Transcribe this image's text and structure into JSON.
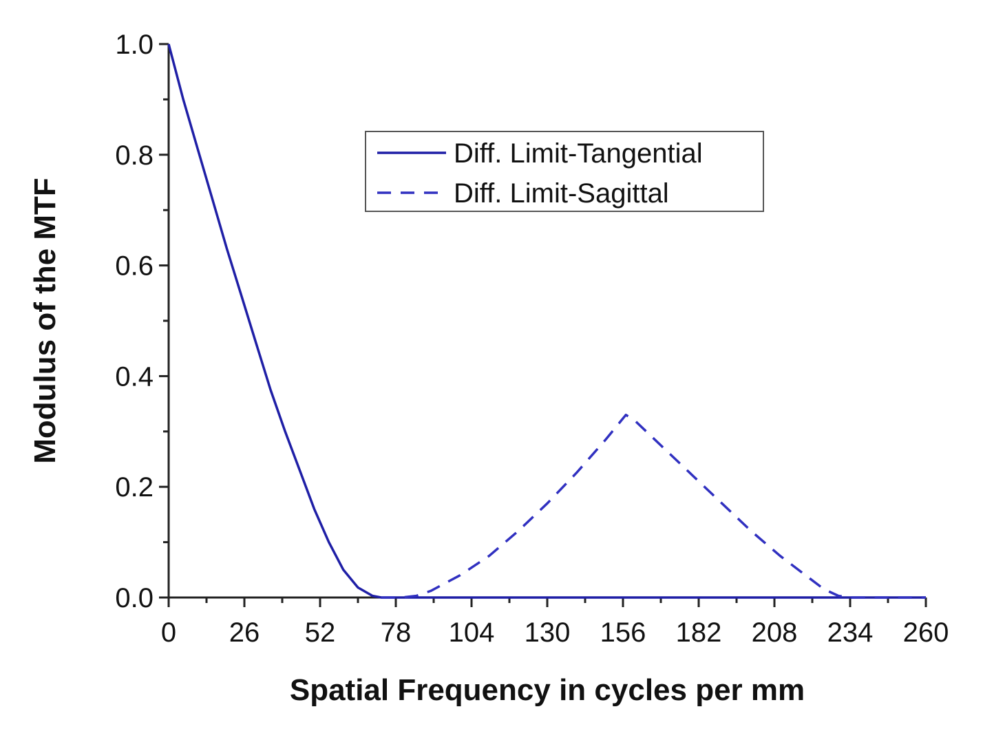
{
  "chart_data": {
    "type": "line",
    "title": "",
    "xlabel": "Spatial Frequency in cycles per mm",
    "ylabel": "Modulus of the MTF",
    "xlim": [
      0,
      260
    ],
    "ylim": [
      0,
      1.0
    ],
    "x_ticks": [
      0,
      26,
      52,
      78,
      104,
      130,
      156,
      182,
      208,
      234,
      260
    ],
    "x_tick_labels": [
      "0",
      "26",
      "52",
      "78",
      "104",
      "130",
      "156",
      "182",
      "208",
      "234",
      "260"
    ],
    "y_ticks": [
      0.0,
      0.2,
      0.4,
      0.6,
      0.8,
      1.0
    ],
    "y_tick_labels": [
      "0.0",
      "0.2",
      "0.4",
      "0.6",
      "0.8",
      "1.0"
    ],
    "grid": false,
    "legend_position": "top-right",
    "series": [
      {
        "name": "Diff. Limit-Tangential",
        "style": "solid",
        "color": "#1f1fa6",
        "x": [
          0,
          5,
          10,
          15,
          20,
          25,
          30,
          35,
          40,
          45,
          50,
          55,
          60,
          65,
          70,
          73,
          75,
          80,
          100,
          120,
          140,
          160,
          180,
          200,
          220,
          240,
          260
        ],
        "values": [
          1.0,
          0.9,
          0.81,
          0.72,
          0.63,
          0.545,
          0.46,
          0.375,
          0.3,
          0.23,
          0.16,
          0.1,
          0.05,
          0.018,
          0.003,
          0.0,
          0.0,
          0.0,
          0.0,
          0.0,
          0.0,
          0.0,
          0.0,
          0.0,
          0.0,
          0.0,
          0.0
        ]
      },
      {
        "name": "Diff. Limit-Sagittal",
        "style": "dashed",
        "color": "#3030c0",
        "x": [
          73,
          80,
          85,
          90,
          100,
          110,
          120,
          130,
          140,
          150,
          157,
          160,
          170,
          180,
          190,
          200,
          210,
          220,
          225,
          230,
          234,
          240,
          260
        ],
        "values": [
          0.0,
          0.0,
          0.003,
          0.012,
          0.04,
          0.075,
          0.12,
          0.17,
          0.225,
          0.285,
          0.33,
          0.32,
          0.27,
          0.22,
          0.17,
          0.12,
          0.075,
          0.035,
          0.015,
          0.003,
          0.0,
          0.0,
          0.0
        ]
      }
    ]
  }
}
